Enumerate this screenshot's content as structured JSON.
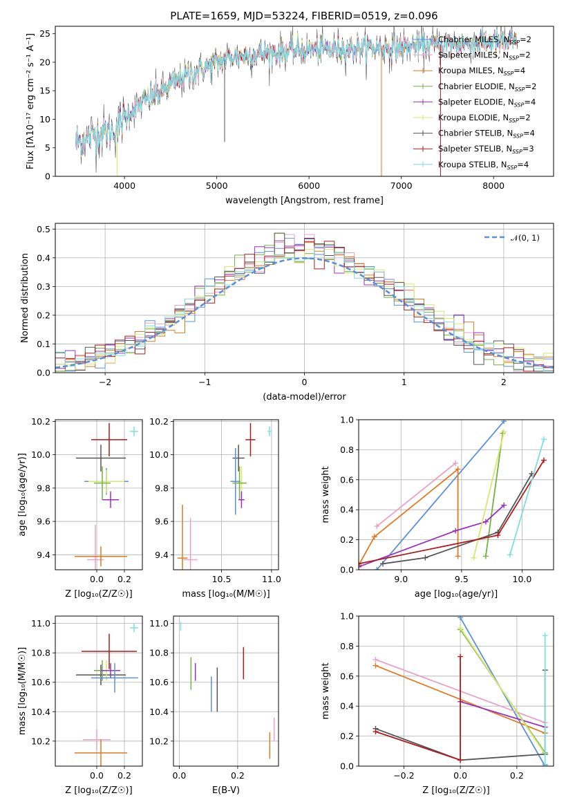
{
  "figure": {
    "title": "PLATE=1659, MJD=53224, FIBERID=0519, z=0.096"
  },
  "colors": {
    "Chabrier MILES": "#5b8fd9",
    "Salpeter MILES": "#e8a0c8",
    "Kroupa MILES": "#e07a1f",
    "Chabrier ELODIE": "#72b043",
    "Salpeter ELODIE": "#9b30c0",
    "Kroupa ELODIE": "#d6e86a",
    "Chabrier STELIB": "#555555",
    "Salpeter STELIB": "#b01a1a",
    "Kroupa STELIB": "#7fdede"
  },
  "chart_data": [
    {
      "id": "spectrum",
      "type": "line",
      "title": "PLATE=1659, MJD=53224, FIBERID=0519, z=0.096",
      "xlabel": "wavelength [Angstrom, rest frame]",
      "ylabel": "Flux [fλ10⁻¹⁷ erg cm⁻² s⁻¹ A⁻¹]",
      "xlim": [
        3250,
        8650
      ],
      "ylim": [
        0,
        26.3
      ],
      "xticks": [
        4000,
        5000,
        6000,
        7000,
        8000
      ],
      "yticks": [
        0,
        5,
        10,
        15,
        20,
        25
      ],
      "grid": false,
      "legend_position": "top-right",
      "legend": [
        {
          "label": "Chabrier MILES, N_SSP=2",
          "text": "Chabrier MILES, N",
          "sub": "SSP",
          "suffix": "=2",
          "model": "Chabrier MILES"
        },
        {
          "label": "Salpeter MILES, N_SSP=2",
          "text": "Salpeter MILES, N",
          "sub": "SSP",
          "suffix": "=2",
          "model": "Salpeter MILES"
        },
        {
          "label": "Kroupa MILES, N_SSP=4",
          "text": "Kroupa MILES, N",
          "sub": "SSP",
          "suffix": "=4",
          "model": "Kroupa MILES"
        },
        {
          "label": "Chabrier ELODIE, N_SSP=2",
          "text": "Chabrier ELODIE, N",
          "sub": "SSP",
          "suffix": "=2",
          "model": "Chabrier ELODIE"
        },
        {
          "label": "Salpeter ELODIE, N_SSP=4",
          "text": "Salpeter ELODIE, N",
          "sub": "SSP",
          "suffix": "=4",
          "model": "Salpeter ELODIE"
        },
        {
          "label": "Kroupa ELODIE, N_SSP=2",
          "text": "Kroupa ELODIE, N",
          "sub": "SSP",
          "suffix": "=2",
          "model": "Kroupa ELODIE"
        },
        {
          "label": "Chabrier STELIB, N_SSP=4",
          "text": "Chabrier STELIB, N",
          "sub": "SSP",
          "suffix": "=4",
          "model": "Chabrier STELIB"
        },
        {
          "label": "Salpeter STELIB, N_SSP=3",
          "text": "Salpeter STELIB, N",
          "sub": "SSP",
          "suffix": "=3",
          "model": "Salpeter STELIB"
        },
        {
          "label": "Kroupa STELIB, N_SSP=4",
          "text": "Kroupa STELIB, N",
          "sub": "SSP",
          "suffix": "=4",
          "model": "Kroupa STELIB"
        }
      ],
      "continuum": {
        "wavelength": [
          3500,
          3700,
          3900,
          4000,
          4200,
          4400,
          4600,
          4800,
          5000,
          5200,
          5500,
          5800,
          6100,
          6400,
          6700,
          7000,
          7300,
          7600,
          7900,
          8200
        ],
        "flux": [
          6,
          7.5,
          8,
          10.5,
          13,
          15,
          17,
          18.5,
          20,
          21,
          21.5,
          22,
          22.3,
          22.4,
          22.5,
          22.6,
          23,
          23.2,
          23.5,
          23.6
        ]
      },
      "spikes": [
        {
          "wavelength": 5085,
          "flux": 6,
          "model": "Chabrier STELIB"
        },
        {
          "wavelength": 6785,
          "flux": 0,
          "model": "Kroupa MILES"
        },
        {
          "wavelength": 7425,
          "flux": 0,
          "model": "Salpeter STELIB"
        },
        {
          "wavelength": 3920,
          "flux": 0,
          "model": "Kroupa ELODIE"
        }
      ]
    },
    {
      "id": "residuals",
      "type": "histogram",
      "xlabel": "(data-model)/error",
      "ylabel": "Normed distribution",
      "xlim": [
        -2.5,
        2.5
      ],
      "ylim": [
        0,
        0.52
      ],
      "xticks": [
        -2,
        -1,
        0,
        1,
        2
      ],
      "yticks": [
        0.0,
        0.1,
        0.2,
        0.3,
        0.4,
        0.5
      ],
      "grid": true,
      "legend_position": "top-right",
      "legend": [
        {
          "label": "𝒩(0, 1)",
          "style": "dashed",
          "color": "#5b8fd9"
        }
      ],
      "bin_width": 0.1,
      "reference_curve": "normal(0,1)"
    },
    {
      "id": "age_vs_Z",
      "type": "scatter",
      "xlabel": "Z [log₁₀(Z/Z☉)]",
      "ylabel": "age  [log₁₀(age/yr)]",
      "xlim": [
        -0.3,
        0.33
      ],
      "ylim": [
        9.31,
        10.21
      ],
      "xticks": [
        0.0,
        0.2
      ],
      "yticks": [
        9.4,
        9.6,
        9.8,
        10.0,
        10.2
      ],
      "grid": true,
      "points": [
        {
          "model": "Kroupa STELIB",
          "x": 0.27,
          "y": 10.14,
          "xerr": 0.03,
          "yerr": 0.03
        },
        {
          "model": "Salpeter STELIB",
          "x": 0.09,
          "y": 10.09,
          "xerr": 0.13,
          "yerr": 0.1
        },
        {
          "model": "Chabrier STELIB",
          "x": 0.03,
          "y": 9.98,
          "xerr": 0.18,
          "yerr": 0.08
        },
        {
          "model": "Chabrier MILES",
          "x": 0.07,
          "y": 9.84,
          "xerr": 0.16,
          "yerr": 0.08
        },
        {
          "model": "Kroupa ELODIE",
          "x": 0.07,
          "y": 9.84,
          "xerr": 0.13,
          "yerr": 0.07
        },
        {
          "model": "Chabrier ELODIE",
          "x": 0.04,
          "y": 9.83,
          "xerr": 0.06,
          "yerr": 0.1
        },
        {
          "model": "Salpeter ELODIE",
          "x": 0.1,
          "y": 9.73,
          "xerr": 0.06,
          "yerr": 0.05
        },
        {
          "model": "Salpeter MILES",
          "x": -0.01,
          "y": 9.37,
          "xerr": 0.06,
          "yerr": 0.21
        },
        {
          "model": "Kroupa MILES",
          "x": 0.03,
          "y": 9.39,
          "xerr": 0.19,
          "yerr": 0.06
        }
      ]
    },
    {
      "id": "age_vs_mass",
      "type": "scatter",
      "xlabel": "mass [log₁₀(M/M☉)]",
      "ylabel": "",
      "xlim": [
        10.02,
        11.07
      ],
      "ylim": [
        9.31,
        10.21
      ],
      "xticks": [
        10.5,
        11.0
      ],
      "yticks": [
        9.4,
        9.6,
        9.8,
        10.0,
        10.2
      ],
      "grid": true,
      "points": [
        {
          "model": "Kroupa STELIB",
          "x": 10.98,
          "y": 10.14,
          "xerr": 0.02,
          "yerr": 0.03
        },
        {
          "model": "Salpeter STELIB",
          "x": 10.79,
          "y": 10.09,
          "xerr": 0.05,
          "yerr": 0.1
        },
        {
          "model": "Chabrier STELIB",
          "x": 10.67,
          "y": 9.98,
          "xerr": 0.06,
          "yerr": 0.08
        },
        {
          "model": "Chabrier MILES",
          "x": 10.64,
          "y": 9.84,
          "xerr": 0.05,
          "yerr": 0.2
        },
        {
          "model": "Kroupa ELODIE",
          "x": 10.7,
          "y": 9.83,
          "xerr": 0.05,
          "yerr": 0.1
        },
        {
          "model": "Chabrier ELODIE",
          "x": 10.68,
          "y": 9.83,
          "xerr": 0.07,
          "yerr": 0.1
        },
        {
          "model": "Salpeter ELODIE",
          "x": 10.7,
          "y": 9.73,
          "xerr": 0.03,
          "yerr": 0.05
        },
        {
          "model": "Salpeter MILES",
          "x": 10.19,
          "y": 9.37,
          "xerr": 0.07,
          "yerr": 0.25
        },
        {
          "model": "Kroupa MILES",
          "x": 10.11,
          "y": 9.38,
          "xerr": 0.05,
          "yerr": 0.32
        }
      ]
    },
    {
      "id": "weight_vs_age",
      "type": "line",
      "xlabel": "age  [log₁₀(age/yr)]",
      "ylabel": "mass weight",
      "xlim": [
        8.65,
        10.26
      ],
      "ylim": [
        0,
        1.0
      ],
      "xticks": [
        9.0,
        9.5,
        10.0
      ],
      "yticks": [
        0.0,
        0.2,
        0.4,
        0.6,
        0.8,
        1.0
      ],
      "grid": true,
      "series": [
        {
          "model": "Chabrier MILES",
          "x": [
            8.8,
            9.85
          ],
          "y": [
            0.0,
            0.99
          ]
        },
        {
          "model": "Salpeter MILES",
          "x": [
            8.8,
            9.45
          ],
          "y": [
            0.29,
            0.71
          ]
        },
        {
          "model": "Kroupa MILES",
          "x": [
            8.65,
            8.78,
            9.47,
            9.47
          ],
          "y": [
            0.03,
            0.22,
            0.67,
            0.09
          ]
        },
        {
          "model": "Chabrier ELODIE",
          "x": [
            9.7,
            9.84
          ],
          "y": [
            0.09,
            0.91
          ]
        },
        {
          "model": "Salpeter ELODIE",
          "x": [
            8.65,
            9.45,
            9.7,
            9.85
          ],
          "y": [
            0.02,
            0.26,
            0.32,
            0.43
          ]
        },
        {
          "model": "Kroupa ELODIE",
          "x": [
            9.6,
            9.85
          ],
          "y": [
            0.08,
            0.92
          ]
        },
        {
          "model": "Chabrier STELIB",
          "x": [
            8.85,
            9.2,
            9.8,
            10.08
          ],
          "y": [
            0.04,
            0.08,
            0.25,
            0.64
          ]
        },
        {
          "model": "Salpeter STELIB",
          "x": [
            8.65,
            9.8,
            10.18
          ],
          "y": [
            0.04,
            0.23,
            0.73
          ]
        },
        {
          "model": "Kroupa STELIB",
          "x": [
            9.9,
            10.18
          ],
          "y": [
            0.1,
            0.87
          ]
        }
      ]
    },
    {
      "id": "mass_vs_Z",
      "type": "scatter",
      "xlabel": "Z [log₁₀(Z/Z☉)]",
      "ylabel": "mass [log₁₀(M/M☉)]",
      "xlim": [
        -0.3,
        0.33
      ],
      "ylim": [
        10.03,
        11.05
      ],
      "xticks": [
        0.0,
        0.2
      ],
      "yticks": [
        10.2,
        10.4,
        10.6,
        10.8,
        11.0
      ],
      "grid": true,
      "points": [
        {
          "model": "Kroupa STELIB",
          "x": 0.27,
          "y": 10.97,
          "xerr": 0.03,
          "yerr": 0.03
        },
        {
          "model": "Salpeter STELIB",
          "x": 0.09,
          "y": 10.81,
          "xerr": 0.2,
          "yerr": 0.12
        },
        {
          "model": "Chabrier STELIB",
          "x": 0.03,
          "y": 10.65,
          "xerr": 0.18,
          "yerr": 0.07
        },
        {
          "model": "Kroupa ELODIE",
          "x": 0.07,
          "y": 10.68,
          "xerr": 0.09,
          "yerr": 0.07
        },
        {
          "model": "Chabrier ELODIE",
          "x": 0.04,
          "y": 10.68,
          "xerr": 0.06,
          "yerr": 0.07
        },
        {
          "model": "Salpeter ELODIE",
          "x": 0.1,
          "y": 10.68,
          "xerr": 0.07,
          "yerr": 0.05
        },
        {
          "model": "Chabrier MILES",
          "x": 0.13,
          "y": 10.63,
          "xerr": 0.17,
          "yerr": 0.1
        },
        {
          "model": "Salpeter MILES",
          "x": 0.0,
          "y": 10.21,
          "xerr": 0.1,
          "yerr": 0.07
        },
        {
          "model": "Kroupa MILES",
          "x": 0.03,
          "y": 10.12,
          "xerr": 0.19,
          "yerr": 0.09
        }
      ]
    },
    {
      "id": "mass_vs_EBV",
      "type": "errorbar",
      "xlabel": "E(B-V)",
      "ylabel": "",
      "xlim": [
        -0.02,
        0.34
      ],
      "ylim": [
        10.03,
        11.05
      ],
      "xticks": [
        0.0,
        0.2
      ],
      "yticks": [
        10.2,
        10.4,
        10.6,
        10.8,
        11.0
      ],
      "grid": true,
      "points": [
        {
          "model": "Kroupa STELIB",
          "x": 0.005,
          "y": 10.98,
          "xerr": 0.0,
          "yerr": 0.03
        },
        {
          "model": "Chabrier ELODIE",
          "x": 0.04,
          "y": 10.66,
          "xerr": 0.0,
          "yerr": 0.11
        },
        {
          "model": "Salpeter ELODIE",
          "x": 0.055,
          "y": 10.67,
          "xerr": 0.0,
          "yerr": 0.06
        },
        {
          "model": "Chabrier MILES",
          "x": 0.11,
          "y": 10.52,
          "xerr": 0.0,
          "yerr": 0.12
        },
        {
          "model": "Chabrier STELIB",
          "x": 0.13,
          "y": 10.55,
          "xerr": 0.0,
          "yerr": 0.15
        },
        {
          "model": "Salpeter STELIB",
          "x": 0.22,
          "y": 10.73,
          "xerr": 0.0,
          "yerr": 0.11
        },
        {
          "model": "Kroupa MILES",
          "x": 0.31,
          "y": 10.17,
          "xerr": 0.0,
          "yerr": 0.09
        },
        {
          "model": "Salpeter MILES",
          "x": 0.325,
          "y": 10.28,
          "xerr": 0.0,
          "yerr": 0.08
        }
      ]
    },
    {
      "id": "weight_vs_Z",
      "type": "line",
      "xlabel": "Z [log₁₀(Z/Z☉)]",
      "ylabel": "mass weight",
      "xlim": [
        -0.36,
        0.33
      ],
      "ylim": [
        0,
        1.0
      ],
      "xticks": [
        -0.2,
        0.0,
        0.2
      ],
      "yticks": [
        0.0,
        0.2,
        0.4,
        0.6,
        0.8,
        1.0
      ],
      "grid": true,
      "series": [
        {
          "model": "Chabrier MILES",
          "x": [
            0.0,
            0.3,
            0.3
          ],
          "y": [
            0.99,
            0.0,
            0.01
          ]
        },
        {
          "model": "Salpeter MILES",
          "x": [
            -0.3,
            0.3
          ],
          "y": [
            0.71,
            0.29
          ]
        },
        {
          "model": "Kroupa MILES",
          "x": [
            -0.3,
            0.3
          ],
          "y": [
            0.67,
            0.22
          ]
        },
        {
          "model": "Chabrier ELODIE",
          "x": [
            0.0,
            0.3
          ],
          "y": [
            0.91,
            0.09
          ]
        },
        {
          "model": "Salpeter ELODIE",
          "x": [
            0.0,
            0.3
          ],
          "y": [
            0.43,
            0.26
          ]
        },
        {
          "model": "Kroupa ELODIE",
          "x": [
            0.0,
            0.3
          ],
          "y": [
            0.92,
            0.08
          ]
        },
        {
          "model": "Chabrier STELIB",
          "x": [
            -0.3,
            0.0,
            0.3,
            0.3
          ],
          "y": [
            0.25,
            0.04,
            0.08,
            0.64
          ]
        },
        {
          "model": "Salpeter STELIB",
          "x": [
            -0.3,
            0.0,
            0.0
          ],
          "y": [
            0.23,
            0.04,
            0.73
          ]
        },
        {
          "model": "Kroupa STELIB",
          "x": [
            0.3,
            0.3
          ],
          "y": [
            0.0,
            0.87
          ]
        }
      ]
    }
  ]
}
